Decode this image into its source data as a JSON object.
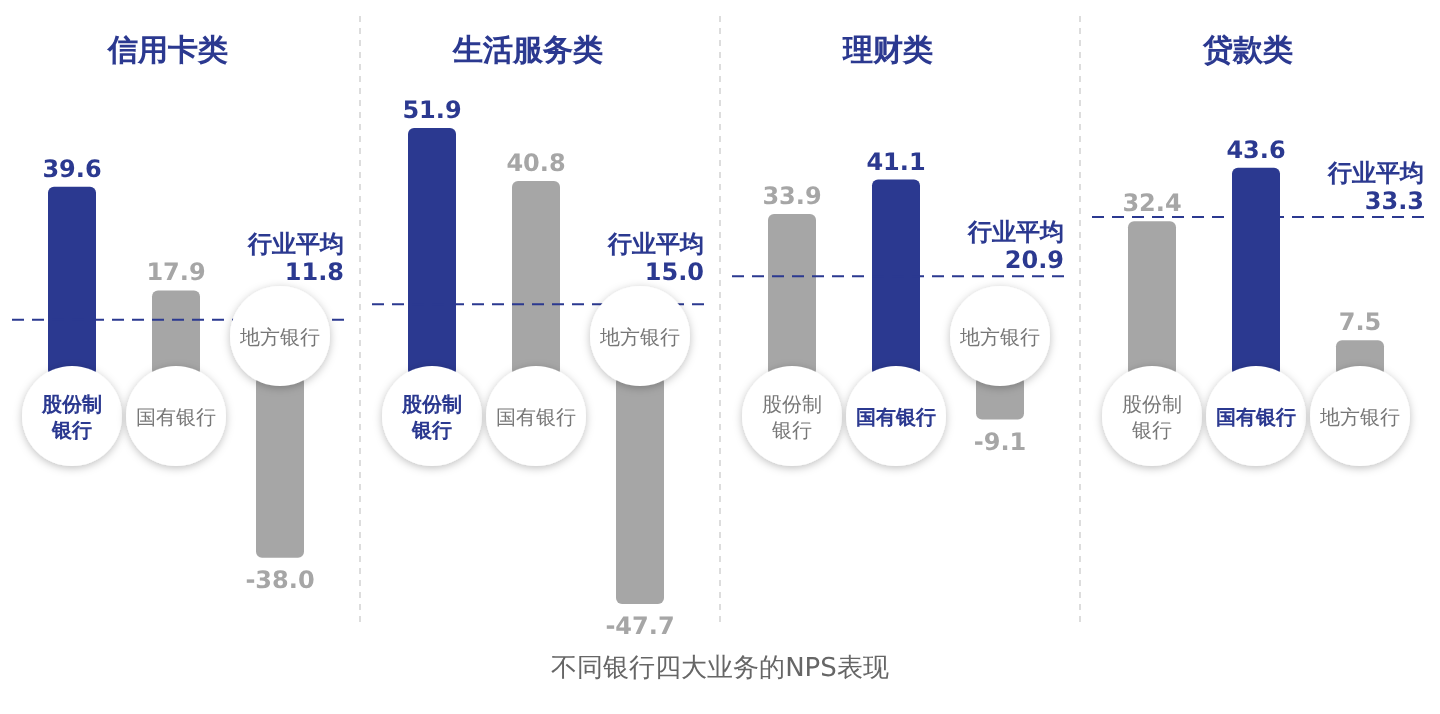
{
  "chart_data": [
    {
      "type": "bar",
      "title": "信用卡类",
      "categories": [
        "股份制银行",
        "国有银行",
        "地方银行"
      ],
      "values": [
        39.6,
        17.9,
        -38.0
      ],
      "value_labels": [
        "39.6",
        "17.9",
        "-38.0"
      ],
      "colors": [
        "#2b3990",
        "#a6a6a6",
        "#a6a6a6"
      ],
      "ref_lines": [
        {
          "axis": "y",
          "value": 11.8,
          "label": "行业平均 11.8",
          "color": "#2b3990",
          "line_style": "dashed"
        }
      ]
    },
    {
      "type": "bar",
      "title": "生活服务类",
      "categories": [
        "股份制银行",
        "国有银行",
        "地方银行"
      ],
      "values": [
        51.9,
        40.8,
        -47.7
      ],
      "value_labels": [
        "51.9",
        "40.8",
        "-47.7"
      ],
      "colors": [
        "#2b3990",
        "#a6a6a6",
        "#a6a6a6"
      ],
      "ref_lines": [
        {
          "axis": "y",
          "value": 15.0,
          "label": "行业平均 15.0",
          "color": "#2b3990",
          "line_style": "dashed"
        }
      ]
    },
    {
      "type": "bar",
      "title": "理财类",
      "categories": [
        "股份制银行",
        "国有银行",
        "地方银行"
      ],
      "values": [
        33.9,
        41.1,
        -9.1
      ],
      "value_labels": [
        "33.9",
        "41.1",
        "-9.1"
      ],
      "colors": [
        "#a6a6a6",
        "#2b3990",
        "#a6a6a6"
      ],
      "ref_lines": [
        {
          "axis": "y",
          "value": 20.9,
          "label": "行业平均 20.9",
          "color": "#2b3990",
          "line_style": "dashed"
        }
      ]
    },
    {
      "type": "bar",
      "title": "贷款类",
      "categories": [
        "股份制银行",
        "国有银行",
        "地方银行"
      ],
      "values": [
        32.4,
        43.6,
        7.5
      ],
      "value_labels": [
        "32.4",
        "43.6",
        "7.5"
      ],
      "colors": [
        "#a6a6a6",
        "#2b3990",
        "#a6a6a6"
      ],
      "ref_lines": [
        {
          "axis": "y",
          "value": 33.3,
          "label": "行业平均 33.3",
          "color": "#2b3990",
          "line_style": "dashed"
        }
      ],
      "annotations": [
        "不同银行四大业务的NPS表现"
      ]
    }
  ]
}
